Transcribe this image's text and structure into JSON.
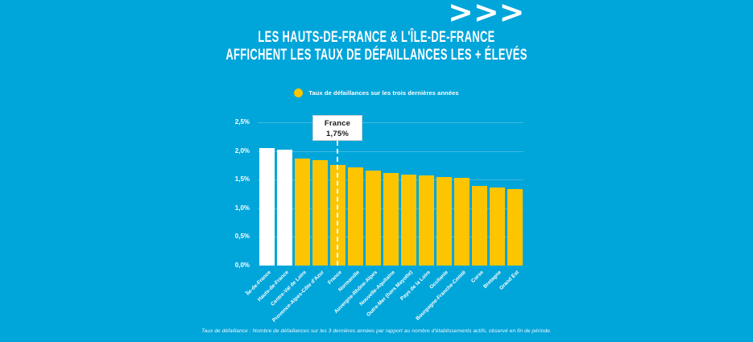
{
  "page": {
    "chevrons": ">>>",
    "title_line1": "LES HAUTS-DE-FRANCE & L'ÎLE-DE-FRANCE",
    "title_line2": "AFFICHENT LES TAUX DE DÉFAILLANCES LES + ÉLEVÉS",
    "footnote": "Taux de défaillance : Nombre de défaillances sur les 3 dernières années par rapport au nombre d'établissements actifs, observé en fin de période."
  },
  "legend": {
    "label": "Taux de défaillances sur les trois dernières années"
  },
  "colors": {
    "background": "#00A5DA",
    "bar": "#FDC500",
    "highlight_bar": "#FFFFFF",
    "grid": "rgba(255,255,255,0.25)",
    "text": "#FFFFFF",
    "annotation_text": "#1A1A1A"
  },
  "chart_data": {
    "type": "bar",
    "title": "LES HAUTS-DE-FRANCE & L'ÎLE-DE-FRANCE AFFICHENT LES TAUX DE DÉFAILLANCES LES + ÉLEVÉS",
    "legend": "Taux de défaillances sur les trois dernières années",
    "categories": [
      "Île-de-France",
      "Hauts-de-France",
      "Centre-Val de Loire",
      "Provence-Alpes-Côte d'Azur",
      "France",
      "Normandie",
      "Auvergne-Rhône-Alpes",
      "Nouvelle-Aquitaine",
      "Outre-Mer (hors Mayotte)",
      "Pays de la Loire",
      "Occitanie",
      "Bourgogne-Franche-Comté",
      "Corse",
      "Bretagne",
      "Grand Est"
    ],
    "values": [
      2.05,
      2.02,
      1.87,
      1.84,
      1.75,
      1.72,
      1.66,
      1.62,
      1.59,
      1.57,
      1.55,
      1.53,
      1.39,
      1.37,
      1.34
    ],
    "unit": "%",
    "xlabel": "",
    "ylabel": "",
    "ylim": [
      0,
      2.5
    ],
    "yticks": [
      "0,0%",
      "0,5%",
      "1,0%",
      "1,5%",
      "2,0%",
      "2,5%"
    ],
    "ytick_values": [
      0,
      0.5,
      1.0,
      1.5,
      2.0,
      2.5
    ],
    "grid": true,
    "legend_position": "top-center",
    "bar_color": "#FDC500",
    "highlight_color": "#FFFFFF",
    "highlight_indexes": [
      0,
      1
    ],
    "annotation": {
      "label": "France",
      "value_label": "1,75%",
      "value": 1.75,
      "category_index": 4
    }
  }
}
